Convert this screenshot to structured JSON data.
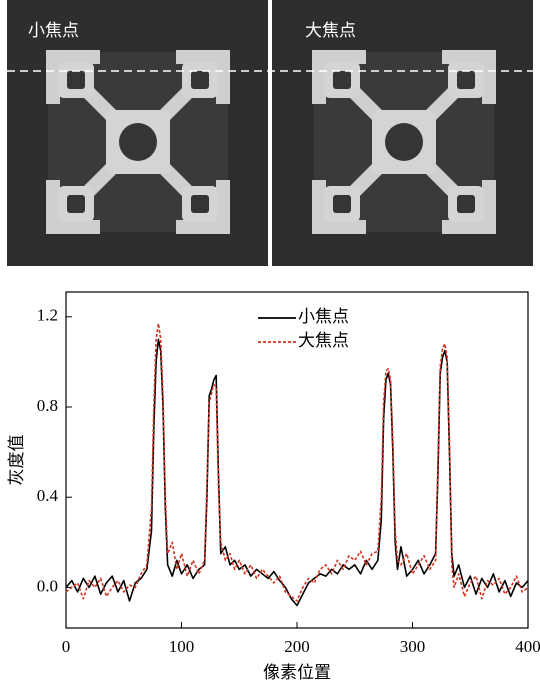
{
  "images": [
    {
      "label": "小焦点"
    },
    {
      "label": "大焦点"
    }
  ],
  "chart_data": {
    "type": "line",
    "xlabel": "像素位置",
    "ylabel": "灰度值",
    "xlim": [
      0,
      400
    ],
    "xticks": [
      0,
      100,
      200,
      300,
      400
    ],
    "ylim": [
      -0.18,
      1.31
    ],
    "yticks": [
      {
        "value": 0,
        "label": "0.0"
      },
      0.4,
      0.8,
      1.2
    ],
    "legend": "top-center",
    "x": [
      0,
      5,
      10,
      15,
      20,
      25,
      30,
      35,
      40,
      45,
      50,
      55,
      60,
      65,
      70,
      74,
      76,
      78,
      80,
      82,
      84,
      86,
      88,
      92,
      96,
      100,
      105,
      110,
      115,
      120,
      122,
      124,
      126,
      128,
      130,
      132,
      134,
      138,
      142,
      146,
      150,
      155,
      160,
      165,
      170,
      175,
      180,
      185,
      190,
      195,
      200,
      205,
      210,
      215,
      220,
      225,
      230,
      235,
      240,
      245,
      250,
      255,
      260,
      265,
      270,
      273,
      275,
      277,
      279,
      281,
      283,
      285,
      287,
      290,
      295,
      300,
      305,
      310,
      315,
      320,
      322,
      324,
      326,
      328,
      330,
      332,
      334,
      336,
      340,
      345,
      350,
      355,
      360,
      365,
      370,
      375,
      380,
      385,
      390,
      395,
      400
    ],
    "series": [
      {
        "name": "小焦点",
        "color": "#000000",
        "dash": false,
        "values": [
          0.0,
          0.03,
          -0.02,
          0.04,
          0.0,
          0.05,
          -0.03,
          0.02,
          0.05,
          -0.02,
          0.03,
          -0.06,
          0.02,
          0.04,
          0.08,
          0.25,
          0.7,
          1.0,
          1.1,
          1.05,
          0.8,
          0.35,
          0.1,
          0.05,
          0.12,
          0.06,
          0.1,
          0.04,
          0.08,
          0.1,
          0.4,
          0.85,
          0.88,
          0.92,
          0.94,
          0.5,
          0.15,
          0.18,
          0.1,
          0.12,
          0.08,
          0.1,
          0.05,
          0.08,
          0.06,
          0.04,
          0.07,
          0.03,
          0.0,
          -0.05,
          -0.08,
          -0.03,
          0.02,
          0.04,
          0.06,
          0.05,
          0.08,
          0.06,
          0.1,
          0.08,
          0.1,
          0.06,
          0.12,
          0.08,
          0.12,
          0.3,
          0.75,
          0.92,
          0.95,
          0.9,
          0.6,
          0.2,
          0.08,
          0.18,
          0.05,
          0.08,
          0.12,
          0.06,
          0.1,
          0.15,
          0.5,
          0.95,
          1.02,
          1.05,
          1.0,
          0.6,
          0.15,
          0.05,
          0.1,
          0.0,
          0.05,
          -0.03,
          0.04,
          0.0,
          0.06,
          -0.02,
          0.03,
          -0.04,
          0.02,
          0.0,
          0.03
        ]
      },
      {
        "name": "大焦点",
        "color": "#d2321e",
        "dash": true,
        "values": [
          -0.02,
          0.0,
          0.02,
          -0.05,
          0.03,
          0.0,
          0.04,
          -0.04,
          0.0,
          0.03,
          -0.02,
          0.01,
          0.0,
          0.06,
          0.1,
          0.35,
          0.8,
          1.1,
          1.17,
          1.1,
          0.85,
          0.4,
          0.15,
          0.2,
          0.08,
          0.15,
          0.05,
          0.12,
          0.06,
          0.12,
          0.45,
          0.82,
          0.86,
          0.9,
          0.88,
          0.45,
          0.2,
          0.12,
          0.15,
          0.08,
          0.12,
          0.06,
          0.1,
          0.04,
          0.08,
          0.05,
          0.02,
          0.05,
          -0.02,
          -0.04,
          -0.06,
          0.0,
          0.04,
          0.02,
          0.08,
          0.1,
          0.06,
          0.12,
          0.08,
          0.14,
          0.12,
          0.16,
          0.1,
          0.15,
          0.16,
          0.4,
          0.82,
          0.96,
          0.97,
          0.92,
          0.65,
          0.25,
          0.12,
          0.1,
          0.15,
          0.06,
          0.1,
          0.14,
          0.08,
          0.12,
          0.55,
          0.98,
          1.06,
          1.08,
          1.02,
          0.65,
          0.1,
          0.0,
          0.06,
          -0.04,
          0.02,
          0.05,
          -0.05,
          0.03,
          0.01,
          0.04,
          -0.03,
          0.0,
          0.05,
          -0.02,
          0.0
        ]
      }
    ]
  }
}
